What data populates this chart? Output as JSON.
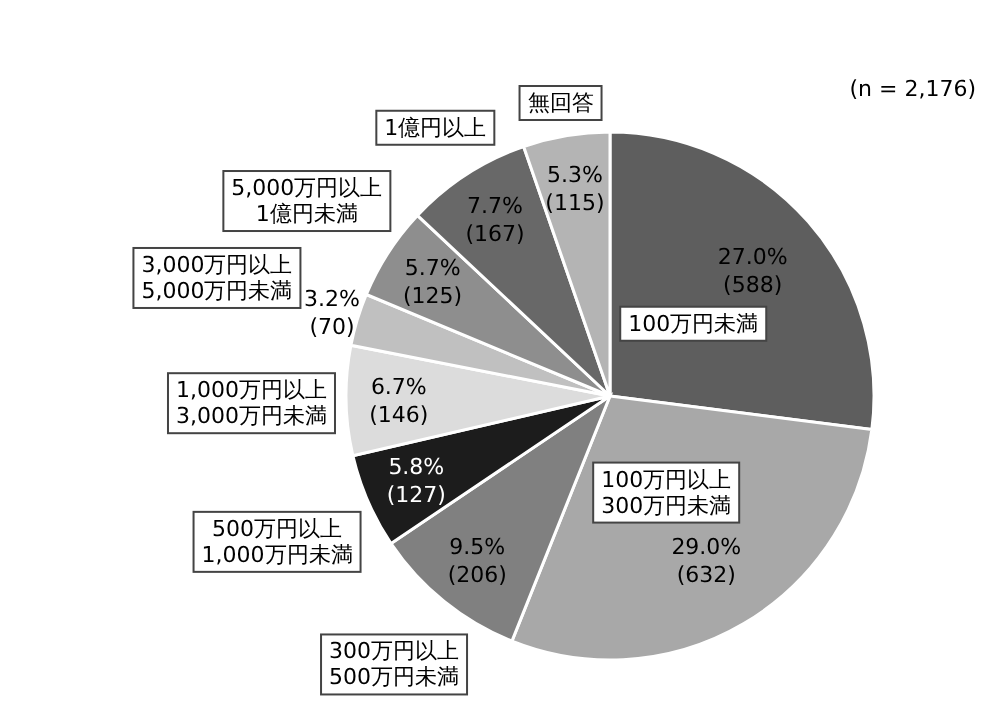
{
  "chart_data": {
    "type": "pie",
    "categories": [
      "100万円未満",
      "100万円以上 300万円未満",
      "300万円以上 500万円未満",
      "500万円以上 1,000万円未満",
      "1,000万円以上 3,000万円未満",
      "3,000万円以上 5,000万円未満",
      "5,000万円以上 1億円未満",
      "1億円以上",
      "無回答"
    ],
    "values": [
      27.0,
      29.0,
      9.5,
      5.8,
      6.7,
      3.2,
      5.7,
      7.7,
      5.3
    ],
    "colors": [
      "#5e5e5e",
      "#a8a8a8",
      "#808080",
      "#1c1c1c",
      "#dcdcdc",
      "#c0c0c0",
      "#8e8e8e",
      "#686868",
      "#b4b4b4"
    ],
    "value_labels": [
      "27.0% (588)",
      "29.0% (632)",
      "9.5% (206)",
      "5.8% (127)",
      "6.7% (146)",
      "3.2% (70)",
      "5.7% (125)",
      "7.7% (167)",
      "5.3% (115)"
    ],
    "annotations": [
      "(n = 2,176)"
    ]
  }
}
